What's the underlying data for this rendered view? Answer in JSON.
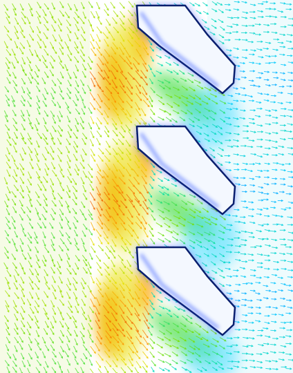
{
  "figure": {
    "type": "cfd-velocity-vector-field",
    "text_labels": [],
    "colormap": [
      "#1a1aff",
      "#00c8ff",
      "#00e0a0",
      "#7ae000",
      "#e8e000",
      "#ff9000",
      "#e03000"
    ],
    "background": "#ffffff",
    "blade_count": 3,
    "blade_outline_color": "#0a1f6e"
  }
}
